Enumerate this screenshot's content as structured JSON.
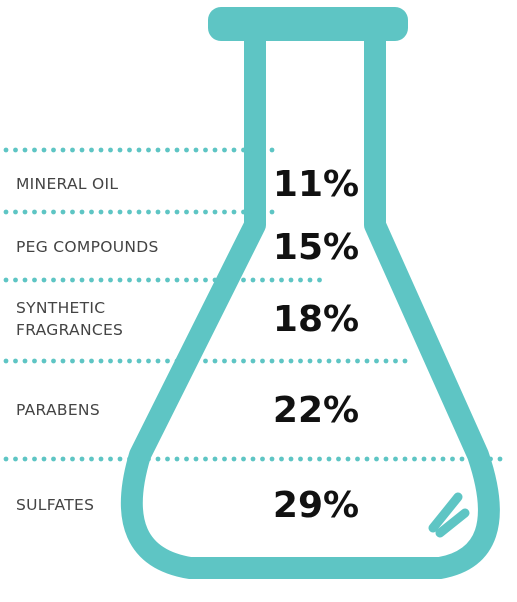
{
  "colors": {
    "flask": "#5ec5c4",
    "dots": "#5ec5c4",
    "label_text": "#444444",
    "value_text": "#111111",
    "background": "#ffffff"
  },
  "chart_data": {
    "type": "bar",
    "title": "",
    "categories": [
      "MINERAL OIL",
      "PEG COMPOUNDS",
      "SYNTHETIC FRAGRANCES",
      "PARABENS",
      "SULFATES"
    ],
    "category_lines": [
      [
        "MINERAL OIL"
      ],
      [
        "PEG COMPOUNDS"
      ],
      [
        "SYNTHETIC",
        "FRAGRANCES"
      ],
      [
        "PARABENS"
      ],
      [
        "SULFATES"
      ]
    ],
    "values": [
      11,
      15,
      18,
      22,
      29
    ],
    "value_labels": [
      "11%",
      "15%",
      "18%",
      "22%",
      "29%"
    ],
    "unit": "%",
    "grid": false,
    "legend": "none"
  }
}
